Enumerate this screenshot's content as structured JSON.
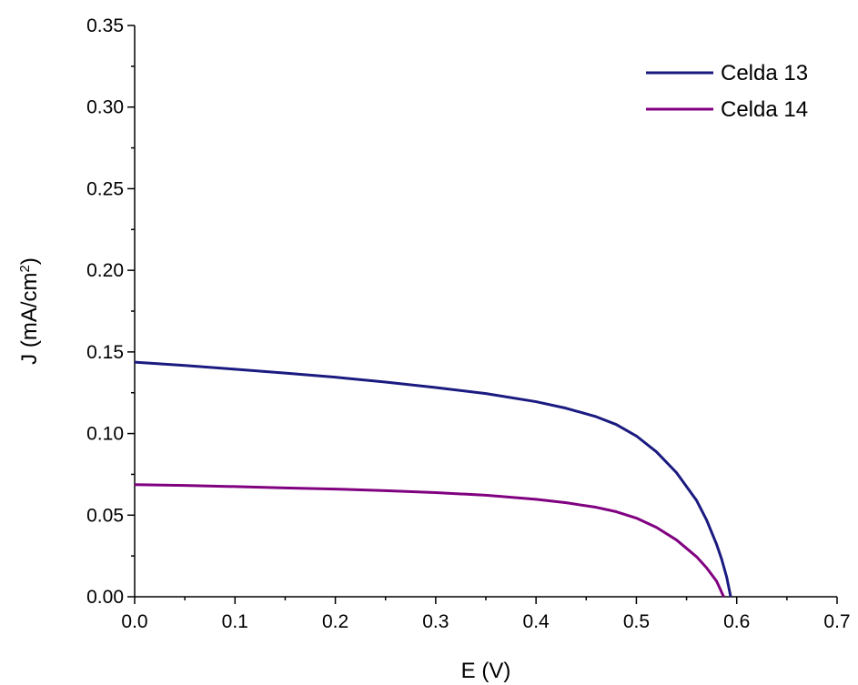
{
  "chart_data": {
    "type": "line",
    "title": "",
    "xlabel": "E (V)",
    "ylabel": {
      "prefix": "J (mA/cm",
      "sup": "2",
      "suffix": ")"
    },
    "xlim": [
      0.0,
      0.7
    ],
    "ylim": [
      0.0,
      0.35
    ],
    "xticks": [
      "0.0",
      "0.1",
      "0.2",
      "0.3",
      "0.4",
      "0.5",
      "0.6",
      "0.7"
    ],
    "yticks": [
      "0.00",
      "0.05",
      "0.10",
      "0.15",
      "0.20",
      "0.25",
      "0.30",
      "0.35"
    ],
    "grid": false,
    "legend_position": "top-right",
    "series": [
      {
        "name": "Celda 13",
        "color": "#1a1a80",
        "x": [
          0.0,
          0.05,
          0.1,
          0.15,
          0.2,
          0.25,
          0.3,
          0.35,
          0.4,
          0.43,
          0.46,
          0.48,
          0.5,
          0.52,
          0.54,
          0.56,
          0.57,
          0.58,
          0.585,
          0.59,
          0.594
        ],
        "y": [
          0.1437,
          0.1417,
          0.1394,
          0.137,
          0.1345,
          0.1315,
          0.1282,
          0.1245,
          0.1195,
          0.1155,
          0.1103,
          0.1055,
          0.0985,
          0.0888,
          0.076,
          0.059,
          0.047,
          0.032,
          0.023,
          0.012,
          0.0
        ]
      },
      {
        "name": "Celda 14",
        "color": "#800080",
        "x": [
          0.0,
          0.05,
          0.1,
          0.15,
          0.2,
          0.25,
          0.3,
          0.35,
          0.4,
          0.43,
          0.46,
          0.48,
          0.5,
          0.52,
          0.54,
          0.56,
          0.57,
          0.58,
          0.587
        ],
        "y": [
          0.0687,
          0.0682,
          0.0675,
          0.0667,
          0.066,
          0.065,
          0.0638,
          0.0622,
          0.0597,
          0.0576,
          0.0548,
          0.0521,
          0.0482,
          0.0425,
          0.0348,
          0.0245,
          0.0177,
          0.0095,
          0.0
        ]
      }
    ]
  }
}
